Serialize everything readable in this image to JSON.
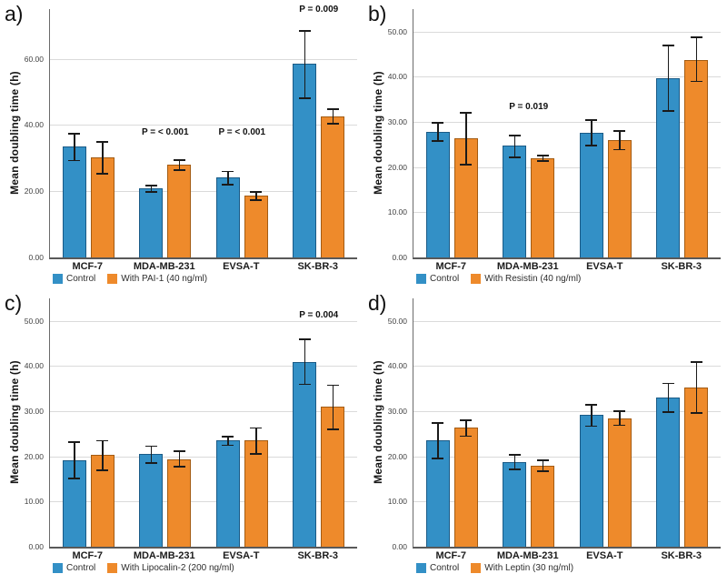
{
  "figure_ylabel": "Mean doubling time (h)",
  "colors": {
    "control_fill": "#3390C6",
    "control_border": "#1A5A86",
    "treatment_fill": "#EE8A2B",
    "treatment_border": "#A35B12",
    "gridline": "#DADADA",
    "axis": "#595959",
    "error_bar": "#1A1A1A"
  },
  "chart_data": [
    {
      "letter": "a)",
      "type": "bar",
      "ylabel": "Mean doubling time (h)",
      "xlabel": "",
      "categories": [
        "MCF-7",
        "MDA-MB-231",
        "EVSA-T",
        "SK-BR-3"
      ],
      "ylim": [
        0,
        75
      ],
      "yticks": [
        0,
        20,
        40,
        60
      ],
      "ytick_labels": [
        "0.00",
        "20.00",
        "40.00",
        "60.00"
      ],
      "grid": true,
      "legend_position": "bottom-left",
      "legend": [
        "Control",
        "With PAI-1 (40 ng/ml)"
      ],
      "series": [
        {
          "name": "Control",
          "values": [
            33.5,
            20.8,
            24.1,
            58.5
          ],
          "err_low": [
            29.3,
            19.9,
            22.1,
            48.2
          ],
          "err_high": [
            37.5,
            21.8,
            26.0,
            68.5
          ]
        },
        {
          "name": "With PAI-1 (40 ng/ml)",
          "values": [
            30.2,
            27.9,
            18.6,
            42.7
          ],
          "err_low": [
            25.3,
            26.5,
            17.4,
            40.5
          ],
          "err_high": [
            35.0,
            29.5,
            19.8,
            44.9
          ]
        }
      ],
      "annotations": [
        {
          "text": "P = < 0.001",
          "category_index": 1,
          "y": 36
        },
        {
          "text": "P = < 0.001",
          "category_index": 2,
          "y": 36
        },
        {
          "text": "P = 0.009",
          "category_index": 3,
          "y": 73
        }
      ]
    },
    {
      "letter": "b)",
      "type": "bar",
      "ylabel": "Mean doubling time (h)",
      "xlabel": "",
      "categories": [
        "MCF-7",
        "MDA-MB-231",
        "EVSA-T",
        "SK-BR-3"
      ],
      "ylim": [
        0,
        55
      ],
      "yticks": [
        0,
        10,
        20,
        30,
        40,
        50
      ],
      "ytick_labels": [
        "0.00",
        "10.00",
        "20.00",
        "30.00",
        "40.00",
        "50.00"
      ],
      "grid": true,
      "legend_position": "bottom-left",
      "legend": [
        "Control",
        "With Resistin (40 ng/ml)"
      ],
      "series": [
        {
          "name": "Control",
          "values": [
            27.8,
            24.7,
            27.6,
            39.7
          ],
          "err_low": [
            25.8,
            22.2,
            24.8,
            32.4
          ],
          "err_high": [
            29.9,
            27.1,
            30.4,
            46.9
          ]
        },
        {
          "name": "With Resistin (40 ng/ml)",
          "values": [
            26.4,
            22.0,
            26.0,
            43.8
          ],
          "err_low": [
            20.6,
            21.4,
            23.9,
            39.0
          ],
          "err_high": [
            32.1,
            22.6,
            28.0,
            48.7
          ]
        }
      ],
      "annotations": [
        {
          "text": "P = 0.019",
          "category_index": 1,
          "y": 32
        }
      ]
    },
    {
      "letter": "c)",
      "type": "bar",
      "ylabel": "Mean doubling time (h)",
      "xlabel": "",
      "categories": [
        "MCF-7",
        "MDA-MB-231",
        "EVSA-T",
        "SK-BR-3"
      ],
      "ylim": [
        0,
        55
      ],
      "yticks": [
        0,
        10,
        20,
        30,
        40,
        50
      ],
      "ytick_labels": [
        "0.00",
        "10.00",
        "20.00",
        "30.00",
        "40.00",
        "50.00"
      ],
      "grid": true,
      "legend_position": "bottom-left",
      "legend": [
        "Control",
        "With Lipocalin-2 (200 ng/ml)"
      ],
      "series": [
        {
          "name": "Control",
          "values": [
            19.2,
            20.5,
            23.5,
            41.0
          ],
          "err_low": [
            15.1,
            18.5,
            22.5,
            36.0
          ],
          "err_high": [
            23.2,
            22.3,
            24.4,
            46.0
          ]
        },
        {
          "name": "With Lipocalin-2 (200 ng/ml)",
          "values": [
            20.3,
            19.4,
            23.5,
            31.0
          ],
          "err_low": [
            17.0,
            17.7,
            20.5,
            26.0
          ],
          "err_high": [
            23.5,
            21.2,
            26.3,
            35.8
          ]
        }
      ],
      "annotations": [
        {
          "text": "P = 0.004",
          "category_index": 3,
          "y": 50
        }
      ]
    },
    {
      "letter": "d)",
      "type": "bar",
      "ylabel": "Mean doubling time (h)",
      "xlabel": "",
      "categories": [
        "MCF-7",
        "MDA-MB-231",
        "EVSA-T",
        "SK-BR-3"
      ],
      "ylim": [
        0,
        55
      ],
      "yticks": [
        0,
        10,
        20,
        30,
        40,
        50
      ],
      "ytick_labels": [
        "0.00",
        "10.00",
        "20.00",
        "30.00",
        "40.00",
        "50.00"
      ],
      "grid": true,
      "legend_position": "bottom-left",
      "legend": [
        "Control",
        "With Leptin (30 ng/ml)"
      ],
      "series": [
        {
          "name": "Control",
          "values": [
            23.5,
            18.8,
            29.2,
            33.0
          ],
          "err_low": [
            19.6,
            17.2,
            26.7,
            29.8
          ],
          "err_high": [
            27.4,
            20.4,
            31.5,
            36.2
          ]
        },
        {
          "name": "With Leptin (30 ng/ml)",
          "values": [
            26.3,
            17.9,
            28.4,
            35.2
          ],
          "err_low": [
            24.5,
            16.7,
            26.9,
            29.6
          ],
          "err_high": [
            28.0,
            19.2,
            30.0,
            40.9
          ]
        }
      ],
      "annotations": []
    }
  ]
}
